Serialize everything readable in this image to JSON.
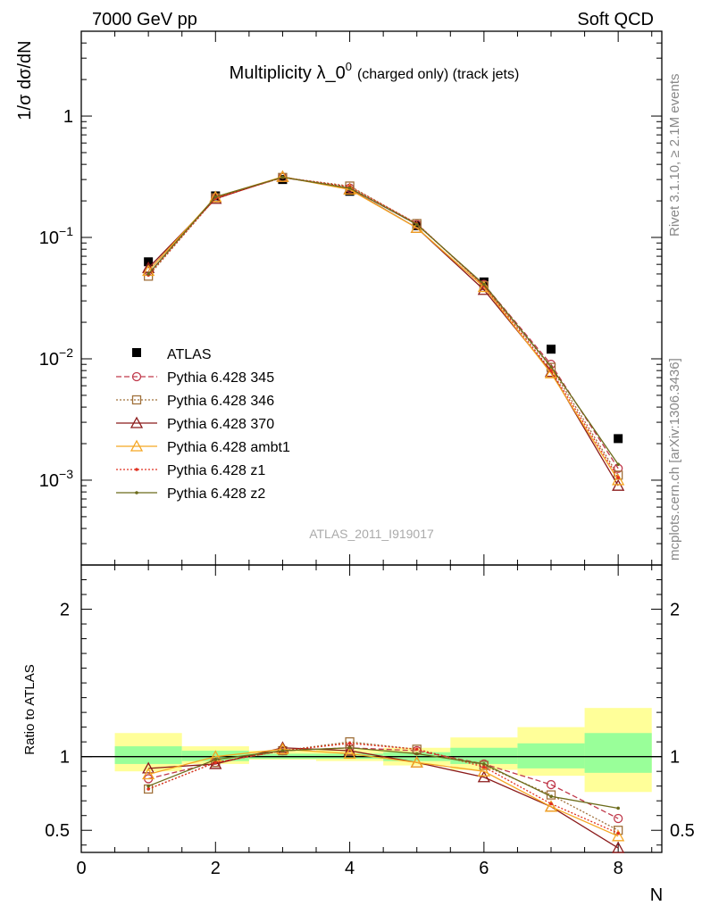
{
  "header": {
    "left": "7000 GeV pp",
    "right": "Soft QCD",
    "title_main": "Multiplicity λ_0",
    "title_sup": "0",
    "title_sub": "(charged only) (track jets)",
    "side_top": "Rivet 3.1.10, ≥ 2.1M events",
    "side_bottom": "mcplots.cern.ch [arXiv:1306.3436]",
    "analysis": "ATLAS_2011_I919017"
  },
  "chart_data": [
    {
      "type": "line",
      "panel": "main",
      "ylabel": "1/σ dσ/dN",
      "yscale": "log",
      "ylim": [
        0.0002,
        5
      ],
      "xlim": [
        0,
        8.65
      ],
      "ytick_labels": [
        "1",
        "10",
        "10",
        "10"
      ],
      "ytick_exps": [
        "",
        "−1",
        "−2",
        "−3"
      ],
      "x": [
        1,
        2,
        3,
        4,
        5,
        6,
        7,
        8
      ],
      "series": [
        {
          "name": "ATLAS",
          "color": "#000000",
          "marker": "square",
          "values": [
            0.063,
            0.22,
            0.3,
            0.24,
            0.125,
            0.043,
            0.012,
            0.0022
          ]
        },
        {
          "name": "Pythia 6.428 345",
          "color": "#c0394b",
          "marker": "circle-open",
          "dash": "dashed",
          "values": [
            0.053,
            0.212,
            0.312,
            0.255,
            0.128,
            0.041,
            0.009,
            0.00125
          ]
        },
        {
          "name": "Pythia 6.428 346",
          "color": "#a0703a",
          "marker": "square-open",
          "dash": "dotted",
          "values": [
            0.048,
            0.212,
            0.312,
            0.265,
            0.13,
            0.04,
            0.0085,
            0.0011
          ]
        },
        {
          "name": "Pythia 6.428 370",
          "color": "#8b1a1a",
          "marker": "triangle-open",
          "dash": "solid",
          "values": [
            0.056,
            0.208,
            0.316,
            0.25,
            0.12,
            0.037,
            0.0078,
            0.0009
          ]
        },
        {
          "name": "Pythia 6.428 ambt1",
          "color": "#f5a623",
          "marker": "triangle-open",
          "dash": "solid",
          "values": [
            0.053,
            0.215,
            0.316,
            0.248,
            0.12,
            0.039,
            0.0076,
            0.001
          ]
        },
        {
          "name": "Pythia 6.428 z1",
          "color": "#e03020",
          "marker": "dot",
          "dash": "dotted",
          "values": [
            0.049,
            0.21,
            0.312,
            0.262,
            0.13,
            0.04,
            0.008,
            0.00105
          ]
        },
        {
          "name": "Pythia 6.428 z2",
          "color": "#6b6b1a",
          "marker": "dot",
          "dash": "solid",
          "values": [
            0.05,
            0.216,
            0.313,
            0.255,
            0.128,
            0.041,
            0.0086,
            0.00135
          ]
        }
      ]
    },
    {
      "type": "line",
      "panel": "ratio",
      "ylabel": "Ratio to ATLAS",
      "xlabel": "N",
      "ylim": [
        0.35,
        2.3
      ],
      "xlim": [
        0,
        8.65
      ],
      "yticks": [
        0.5,
        1,
        2
      ],
      "ytick_labels": [
        "0.5",
        "1",
        "2"
      ],
      "xticks": [
        0,
        2,
        4,
        6,
        8
      ],
      "xtick_labels": [
        "0",
        "2",
        "4",
        "6",
        "8"
      ],
      "bands": [
        {
          "x0": 0.5,
          "x1": 1.5,
          "stat": [
            0.95,
            1.07
          ],
          "total": [
            0.9,
            1.16
          ]
        },
        {
          "x0": 1.5,
          "x1": 2.5,
          "stat": [
            0.97,
            1.04
          ],
          "total": [
            0.95,
            1.07
          ]
        },
        {
          "x0": 2.5,
          "x1": 3.5,
          "stat": [
            0.985,
            1.02
          ],
          "total": [
            0.98,
            1.04
          ]
        },
        {
          "x0": 3.5,
          "x1": 4.5,
          "stat": [
            0.985,
            1.02
          ],
          "total": [
            0.97,
            1.05
          ]
        },
        {
          "x0": 4.5,
          "x1": 5.5,
          "stat": [
            0.97,
            1.03
          ],
          "total": [
            0.94,
            1.06
          ]
        },
        {
          "x0": 5.5,
          "x1": 6.5,
          "stat": [
            0.95,
            1.06
          ],
          "total": [
            0.91,
            1.13
          ]
        },
        {
          "x0": 6.5,
          "x1": 7.5,
          "stat": [
            0.92,
            1.09
          ],
          "total": [
            0.87,
            1.2
          ]
        },
        {
          "x0": 7.5,
          "x1": 8.5,
          "stat": [
            0.89,
            1.16
          ],
          "total": [
            0.76,
            1.33
          ]
        }
      ],
      "series": [
        {
          "name": "Pythia 6.428 345",
          "values": [
            0.85,
            0.96,
            1.04,
            1.06,
            1.04,
            0.95,
            0.81,
            0.58
          ]
        },
        {
          "name": "Pythia 6.428 346",
          "values": [
            0.78,
            0.96,
            1.04,
            1.1,
            1.05,
            0.94,
            0.74,
            0.5
          ]
        },
        {
          "name": "Pythia 6.428 370",
          "values": [
            0.92,
            0.95,
            1.06,
            1.04,
            0.96,
            0.86,
            0.66,
            0.38
          ]
        },
        {
          "name": "Pythia 6.428 ambt1",
          "values": [
            0.88,
            1.0,
            1.05,
            1.02,
            0.96,
            0.9,
            0.66,
            0.46
          ]
        },
        {
          "name": "Pythia 6.428 z1",
          "values": [
            0.78,
            0.96,
            1.04,
            1.09,
            1.05,
            0.93,
            0.68,
            0.48
          ]
        },
        {
          "name": "Pythia 6.428 z2",
          "values": [
            0.8,
            0.98,
            1.04,
            1.06,
            1.02,
            0.95,
            0.73,
            0.65
          ]
        }
      ]
    }
  ]
}
